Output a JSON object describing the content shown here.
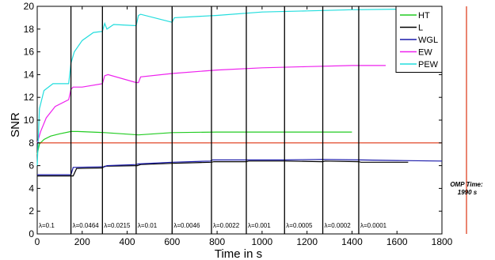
{
  "chart_data": {
    "type": "line",
    "xlabel": "Time in s",
    "ylabel": "SNR",
    "xlim": [
      0,
      1800
    ],
    "ylim": [
      0,
      20
    ],
    "xticks": [
      0,
      200,
      400,
      600,
      800,
      1000,
      1200,
      1400,
      1600,
      1800
    ],
    "yticks": [
      0,
      2,
      4,
      6,
      8,
      10,
      12,
      14,
      16,
      18,
      20
    ],
    "grid": false,
    "legend_position": "top-right",
    "series": [
      {
        "name": "HT",
        "color": "#22cc22",
        "x": [
          0,
          10,
          30,
          60,
          100,
          150,
          180,
          300,
          450,
          600,
          800,
          1000,
          1200,
          1400
        ],
        "y": [
          7.0,
          7.9,
          8.3,
          8.6,
          8.8,
          9.0,
          9.0,
          8.9,
          8.7,
          8.9,
          8.95,
          8.95,
          8.95,
          8.95
        ]
      },
      {
        "name": "L",
        "color": "#000000",
        "x": [
          0,
          160,
          175,
          290,
          300,
          445,
          460,
          600,
          775,
          785,
          930,
          940,
          1100,
          1270,
          1280,
          1430,
          1440,
          1650
        ],
        "y": [
          5.1,
          5.1,
          5.75,
          5.8,
          5.95,
          6.0,
          6.1,
          6.2,
          6.3,
          6.35,
          6.35,
          6.4,
          6.4,
          6.35,
          6.4,
          6.35,
          6.3,
          6.3
        ]
      },
      {
        "name": "WGL",
        "color": "#1a1aaa",
        "x": [
          0,
          150,
          160,
          300,
          310,
          440,
          450,
          600,
          770,
          780,
          930,
          1100,
          1270,
          1440,
          1600,
          1800
        ],
        "y": [
          5.2,
          5.2,
          5.85,
          5.9,
          6.0,
          6.1,
          6.15,
          6.3,
          6.4,
          6.5,
          6.5,
          6.5,
          6.55,
          6.5,
          6.45,
          6.4
        ]
      },
      {
        "name": "EW",
        "color": "#ee22ee",
        "x": [
          0,
          15,
          40,
          80,
          140,
          150,
          160,
          200,
          290,
          300,
          315,
          440,
          450,
          460,
          600,
          800,
          1000,
          1200,
          1400,
          1550
        ],
        "y": [
          8.0,
          9.0,
          10.2,
          11.2,
          11.8,
          12.7,
          12.9,
          12.9,
          13.2,
          13.9,
          14.0,
          13.3,
          13.3,
          13.8,
          14.1,
          14.4,
          14.6,
          14.7,
          14.8,
          14.8
        ]
      },
      {
        "name": "PEW",
        "color": "#22dddd",
        "x": [
          0,
          10,
          30,
          70,
          140,
          150,
          165,
          200,
          250,
          290,
          300,
          310,
          340,
          440,
          450,
          460,
          600,
          610,
          800,
          1000,
          1200,
          1400,
          1600,
          1800
        ],
        "y": [
          6.0,
          11.0,
          12.6,
          13.2,
          13.2,
          15.0,
          16.0,
          17.0,
          17.7,
          17.8,
          18.5,
          18.0,
          18.4,
          18.3,
          19.2,
          19.3,
          18.6,
          19.0,
          19.2,
          19.5,
          19.6,
          19.7,
          19.75,
          19.75
        ]
      }
    ],
    "reference_line": {
      "y": 8.0,
      "color": "#dd3311"
    },
    "vertical_markers": [
      {
        "x": 150,
        "label": "λ=0.1"
      },
      {
        "x": 290,
        "label": "λ=0.0464"
      },
      {
        "x": 440,
        "label": "λ=0.0215"
      },
      {
        "x": 600,
        "label": "λ=0.01"
      },
      {
        "x": 775,
        "label": "λ=0.0046"
      },
      {
        "x": 930,
        "label": "λ=0.0022"
      },
      {
        "x": 1100,
        "label": "λ=0.001"
      },
      {
        "x": 1270,
        "label": "λ=0.0005"
      },
      {
        "x": 1430,
        "label": "λ=0.0002"
      },
      {
        "x": null,
        "label": "λ=0.0001"
      }
    ],
    "omp": {
      "line1": "OMP Time:",
      "line2": "1990 s",
      "color": "#dd3311"
    }
  }
}
